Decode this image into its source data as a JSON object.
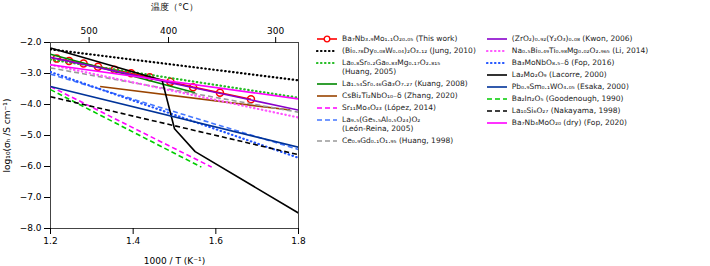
{
  "chart_data": {
    "type": "line",
    "xlabel": "1000 / T (K⁻¹)",
    "ylabel": "log₁₀(σₕ /S cm⁻¹)",
    "x2label": "温度（°C）",
    "xlim": [
      1.2,
      1.8
    ],
    "xticks": [
      1.2,
      1.4,
      1.6,
      1.8
    ],
    "x2ticks": [
      {
        "value": 1.29341008,
        "label": "500"
      },
      {
        "value": 1.485553,
        "label": "400"
      },
      {
        "value": 1.744744,
        "label": "300"
      }
    ],
    "ylim": [
      -8,
      -2
    ],
    "yticks": [
      -8,
      -7,
      -6,
      -5,
      -4,
      -3,
      -2
    ],
    "grid": false,
    "series": [
      {
        "name": "Ba₇Nb₃.₉Mo₁.₁O₂₀.₀₅ (This work)",
        "color": "#ff0000",
        "line_style": "solid",
        "marker": "circle",
        "x": [
          1.215,
          1.245,
          1.28,
          1.315,
          1.355,
          1.395,
          1.44,
          1.49,
          1.545,
          1.61,
          1.685
        ],
        "values": [
          -2.52,
          -2.6,
          -2.68,
          -2.78,
          -2.88,
          -2.99,
          -3.12,
          -3.27,
          -3.44,
          -3.62,
          -3.83
        ]
      },
      {
        "name": "(Bi₀.₇₈Dy₀.₀₈W₀.₀₄)₂O₃.₁₂ (Jung, 2010)",
        "color": "#000000",
        "line_style": "dotted",
        "x": [
          1.2,
          1.8
        ],
        "values": [
          -2.22,
          -3.22
        ]
      },
      {
        "name": "La₀.₈Sr₀.₂Ga₀.₈₃Mg₀.₁₇O₂.₈₁₅\n(Huang, 2005)",
        "color": "#22bb22",
        "line_style": "dotted",
        "x": [
          1.2,
          1.8
        ],
        "values": [
          -2.55,
          -3.78
        ]
      },
      {
        "name": "La₁.₅₄Sr₀.₄₆Ga₃O₇.₂₇ (Kuang, 2008)",
        "color": "#008800",
        "line_style": "solid",
        "x": [
          1.2,
          1.55
        ],
        "values": [
          -2.38,
          -3.62
        ]
      },
      {
        "name": "CsBi₂Ti₂NbO₁₀₋δ (Zhang, 2020)",
        "color": "#994400",
        "line_style": "solid",
        "x": [
          1.32,
          1.78
        ],
        "values": [
          -3.42,
          -4.18
        ]
      },
      {
        "name": "Sr₁₁Mo₄O₂₃ (López, 2014)",
        "color": "#ff00ff",
        "line_style": "dashed",
        "x": [
          1.2,
          1.59
        ],
        "values": [
          -3.42,
          -6.02
        ]
      },
      {
        "name": "La₉.₅(Ge₅.₅Al₀.₅O₂₄)O₂\n(León-Reina, 2005)",
        "color": "#4477ff",
        "line_style": "dashed",
        "x": [
          1.2,
          1.8
        ],
        "values": [
          -3.02,
          -5.45
        ]
      },
      {
        "name": "Ce₀.₉Gd₀.₁O₁.₉₅ (Huang, 1998)",
        "color": "#999999",
        "line_style": "dashed",
        "x": [
          1.2,
          1.8
        ],
        "values": [
          -2.82,
          -4.25
        ]
      },
      {
        "name": "(ZrO₂)₀.₉₂(Y₂O₃)₀.₀₈ (Kwon, 2006)",
        "color": "#8800cc",
        "line_style": "solid",
        "x": [
          1.2,
          1.8
        ],
        "values": [
          -2.48,
          -4.18
        ]
      },
      {
        "name": "Na₀.₅Bi₀.₄₉Ti₀.₉₈Mg₀.₀₂O₂.₉₆₅ (Li, 2014)",
        "color": "#ff55ff",
        "line_style": "dotted",
        "x": [
          1.2,
          1.8
        ],
        "values": [
          -2.72,
          -4.42
        ]
      },
      {
        "name": "Ba₃MoNbO₈.₅₋δ (Fop, 2016)",
        "color": "#2255ff",
        "line_style": "dotted",
        "x": [
          1.2,
          1.8
        ],
        "values": [
          -2.95,
          -5.72
        ]
      },
      {
        "name": "La₂Mo₂O₉ (Lacorre, 2000)",
        "color": "#000000",
        "line_style": "solid",
        "x": [
          1.2,
          1.47,
          1.5,
          1.55,
          1.8
        ],
        "values": [
          -2.18,
          -3.22,
          -4.78,
          -5.52,
          -7.5
        ]
      },
      {
        "name": "Pb₀.₉Sm₀.₁WO₄.₀₅ (Esaka, 2000)",
        "color": "#003399",
        "line_style": "solid",
        "x": [
          1.2,
          1.8
        ],
        "values": [
          -3.42,
          -5.38
        ]
      },
      {
        "name": "Ba₂In₂O₅ (Goodenough, 1990)",
        "color": "#00cc00",
        "line_style": "dashed",
        "x": [
          1.2,
          1.565
        ],
        "values": [
          -3.52,
          -6.02
        ]
      },
      {
        "name": "La₁₀Si₆O₂₇ (Nakayama, 1998)",
        "color": "#000000",
        "line_style": "dashed",
        "x": [
          1.2,
          1.8
        ],
        "values": [
          -3.75,
          -5.62
        ]
      },
      {
        "name": "Ba₇Nb₄MoO₂₀ (dry) (Fop, 2020)",
        "color": "#ff00ff",
        "line_style": "solid",
        "x": [
          1.2,
          1.8
        ],
        "values": [
          -2.72,
          -3.82
        ]
      }
    ]
  }
}
